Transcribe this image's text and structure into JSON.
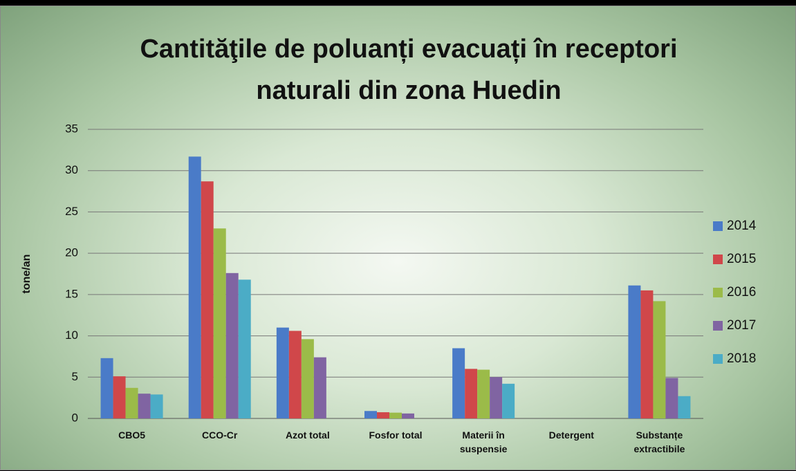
{
  "chart_data": {
    "type": "bar",
    "title": [
      "Cantităţile de poluanți evacuați în receptori",
      "naturali din zona Huedin"
    ],
    "y_label": "tone/an",
    "categories": [
      "CBO5",
      "CCO-Cr",
      "Azot total",
      "Fosfor total",
      "Materii în suspensie",
      "Detergent",
      "Substanțe extractibile"
    ],
    "series": [
      {
        "name": "2014",
        "color": "#4a7bc8",
        "values": [
          7.3,
          31.7,
          11.0,
          0.9,
          8.5,
          null,
          16.1
        ]
      },
      {
        "name": "2015",
        "color": "#d0474a",
        "values": [
          5.1,
          28.7,
          10.6,
          0.75,
          6.0,
          null,
          15.5
        ]
      },
      {
        "name": "2016",
        "color": "#9bbb49",
        "values": [
          3.7,
          23.0,
          9.6,
          0.7,
          5.9,
          null,
          14.2
        ]
      },
      {
        "name": "2017",
        "color": "#8064a2",
        "values": [
          3.0,
          17.6,
          7.4,
          0.6,
          5.0,
          null,
          4.9
        ]
      },
      {
        "name": "2018",
        "color": "#4bacc6",
        "values": [
          2.9,
          16.8,
          null,
          null,
          4.2,
          null,
          2.7
        ]
      }
    ],
    "ylim": [
      0,
      35
    ],
    "yticks": [
      0,
      5,
      10,
      15,
      20,
      25,
      30,
      35
    ],
    "grid": true,
    "legend": "right"
  }
}
